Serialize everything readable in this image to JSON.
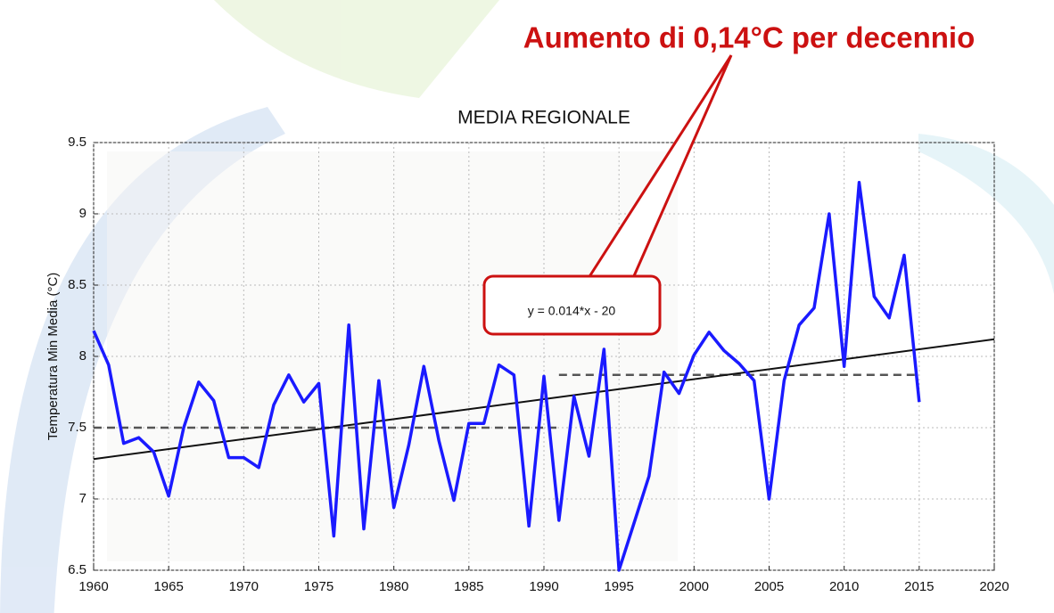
{
  "chart_data": {
    "type": "line",
    "title": "MEDIA REGIONALE",
    "annotation": "Aumento di 0,14°C per decennio",
    "equation": "y = 0.014*x - 20",
    "y_label": "Temperatura Min Media (°C)",
    "x": [
      1960,
      1961,
      1962,
      1963,
      1964,
      1965,
      1966,
      1967,
      1968,
      1969,
      1970,
      1971,
      1972,
      1973,
      1974,
      1975,
      1976,
      1977,
      1978,
      1979,
      1980,
      1981,
      1982,
      1983,
      1984,
      1985,
      1986,
      1987,
      1988,
      1989,
      1990,
      1991,
      1992,
      1993,
      1994,
      1995,
      1996,
      1997,
      1998,
      1999,
      2000,
      2001,
      2002,
      2003,
      2004,
      2005,
      2006,
      2007,
      2008,
      2009,
      2010,
      2011,
      2012,
      2013,
      2014,
      2015
    ],
    "values": [
      8.18,
      7.94,
      7.39,
      7.43,
      7.33,
      7.02,
      7.5,
      7.82,
      7.69,
      7.29,
      7.29,
      7.22,
      7.66,
      7.87,
      7.68,
      7.81,
      6.74,
      8.22,
      6.79,
      7.83,
      6.94,
      7.38,
      7.93,
      7.41,
      6.99,
      7.53,
      7.53,
      7.94,
      7.87,
      6.81,
      7.86,
      6.85,
      7.72,
      7.3,
      8.05,
      6.5,
      6.83,
      7.16,
      7.89,
      7.74,
      8.01,
      8.17,
      8.04,
      7.95,
      7.83,
      7.0,
      7.83,
      8.22,
      8.34,
      9.0,
      7.93,
      9.22,
      8.42,
      8.27,
      8.71,
      7.68
    ],
    "color": "#1a1aff",
    "trend": {
      "x": [
        1960,
        2020
      ],
      "values": [
        7.28,
        8.12
      ]
    },
    "means": [
      {
        "x": [
          1960,
          1991
        ],
        "value": 7.5
      },
      {
        "x": [
          1991,
          2015
        ],
        "value": 7.87
      }
    ],
    "xlim": [
      1960,
      2020
    ],
    "xticks": [
      1960,
      1965,
      1970,
      1975,
      1980,
      1985,
      1990,
      1995,
      2000,
      2005,
      2010,
      2015,
      2020
    ],
    "ylim": [
      6.5,
      9.5
    ],
    "yticks": [
      6.5,
      7,
      7.5,
      8,
      8.5,
      9,
      9.5
    ],
    "grid": true
  }
}
